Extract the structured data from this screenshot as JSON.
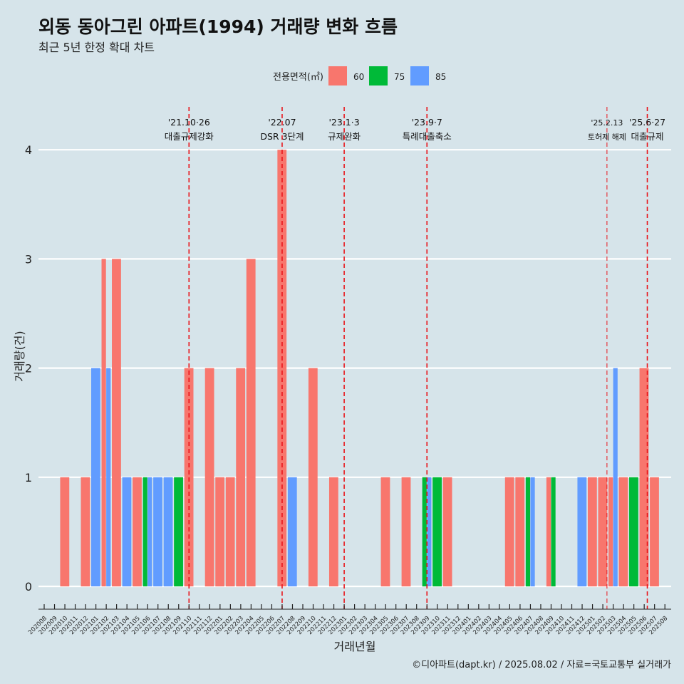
{
  "title": "외동 동아그린 아파트(1994) 거래량 변화 흐름",
  "subtitle": "최근 5년 한정 확대 차트",
  "credit": "©디아파트(dapt.kr) / 2025.08.02 / 자료=국토교통부 실거래가",
  "colors": {
    "background": "#d6e4ea",
    "grid": "#ffffff",
    "event_line": "#e8141a",
    "series": {
      "60": "#f8766d",
      "75": "#00ba38",
      "85": "#619cff"
    }
  },
  "chart_data": {
    "type": "bar",
    "xlabel": "거래년월",
    "ylabel": "거래량(건)",
    "ylim": [
      0,
      4
    ],
    "yticks": [
      0,
      1,
      2,
      3,
      4
    ],
    "grid": true,
    "legend": {
      "title": "전용면적(㎡)",
      "position": "top",
      "entries": [
        "60",
        "75",
        "85"
      ]
    },
    "categories": [
      "202008",
      "202009",
      "202010",
      "202011",
      "202012",
      "202101",
      "202102",
      "202103",
      "202104",
      "202105",
      "202106",
      "202107",
      "202108",
      "202109",
      "202110",
      "202111",
      "202112",
      "202201",
      "202202",
      "202203",
      "202204",
      "202205",
      "202206",
      "202207",
      "202208",
      "202209",
      "202210",
      "202211",
      "202212",
      "202301",
      "202302",
      "202303",
      "202304",
      "202305",
      "202306",
      "202307",
      "202308",
      "202309",
      "202310",
      "202311",
      "202312",
      "202401",
      "202402",
      "202403",
      "202404",
      "202405",
      "202406",
      "202407",
      "202408",
      "202409",
      "202410",
      "202411",
      "202412",
      "202501",
      "202502",
      "202503",
      "202504",
      "202505",
      "202506",
      "202507",
      "202508"
    ],
    "series": [
      {
        "name": "60",
        "values": [
          0,
          0,
          1,
          0,
          1,
          0,
          3,
          3,
          0,
          1,
          0,
          0,
          0,
          0,
          2,
          0,
          2,
          1,
          1,
          2,
          3,
          0,
          0,
          4,
          0,
          0,
          2,
          0,
          1,
          0,
          0,
          0,
          0,
          1,
          0,
          1,
          0,
          0,
          0,
          1,
          0,
          0,
          0,
          0,
          0,
          1,
          1,
          0,
          0,
          1,
          0,
          0,
          0,
          1,
          1,
          1,
          1,
          0,
          2,
          1,
          0
        ]
      },
      {
        "name": "75",
        "values": [
          0,
          0,
          0,
          0,
          0,
          0,
          0,
          0,
          0,
          0,
          1,
          0,
          0,
          1,
          0,
          0,
          0,
          0,
          0,
          0,
          0,
          0,
          0,
          0,
          0,
          0,
          0,
          0,
          0,
          0,
          0,
          0,
          0,
          0,
          0,
          0,
          0,
          1,
          1,
          0,
          0,
          0,
          0,
          0,
          0,
          0,
          0,
          1,
          0,
          1,
          0,
          0,
          0,
          0,
          0,
          0,
          0,
          1,
          0,
          0,
          0
        ]
      },
      {
        "name": "85",
        "values": [
          0,
          0,
          0,
          0,
          0,
          2,
          2,
          0,
          1,
          0,
          1,
          1,
          1,
          0,
          0,
          0,
          0,
          0,
          0,
          0,
          0,
          0,
          0,
          0,
          1,
          0,
          0,
          0,
          0,
          0,
          0,
          0,
          0,
          0,
          0,
          0,
          0,
          1,
          0,
          0,
          0,
          0,
          0,
          0,
          0,
          0,
          0,
          1,
          0,
          0,
          0,
          0,
          1,
          0,
          0,
          2,
          0,
          0,
          0,
          0,
          0
        ]
      }
    ],
    "events": [
      {
        "date": "'21.10·26",
        "label": "대출규제강화",
        "month_index": 14.0,
        "bold": true
      },
      {
        "date": "'22.07",
        "label": "DSR 3단계",
        "month_index": 23.0,
        "bold": true
      },
      {
        "date": "'23.1·3",
        "label": "규제완화",
        "month_index": 29.0,
        "bold": true
      },
      {
        "date": "'23.9·7",
        "label": "특례대출축소",
        "month_index": 37.0,
        "bold": true
      },
      {
        "date": "'25.2.13",
        "label": "토허제 해제",
        "month_index": 54.4,
        "bold": false
      },
      {
        "date": "'25.6·27",
        "label": "대출규제",
        "month_index": 58.3,
        "bold": true
      }
    ]
  }
}
